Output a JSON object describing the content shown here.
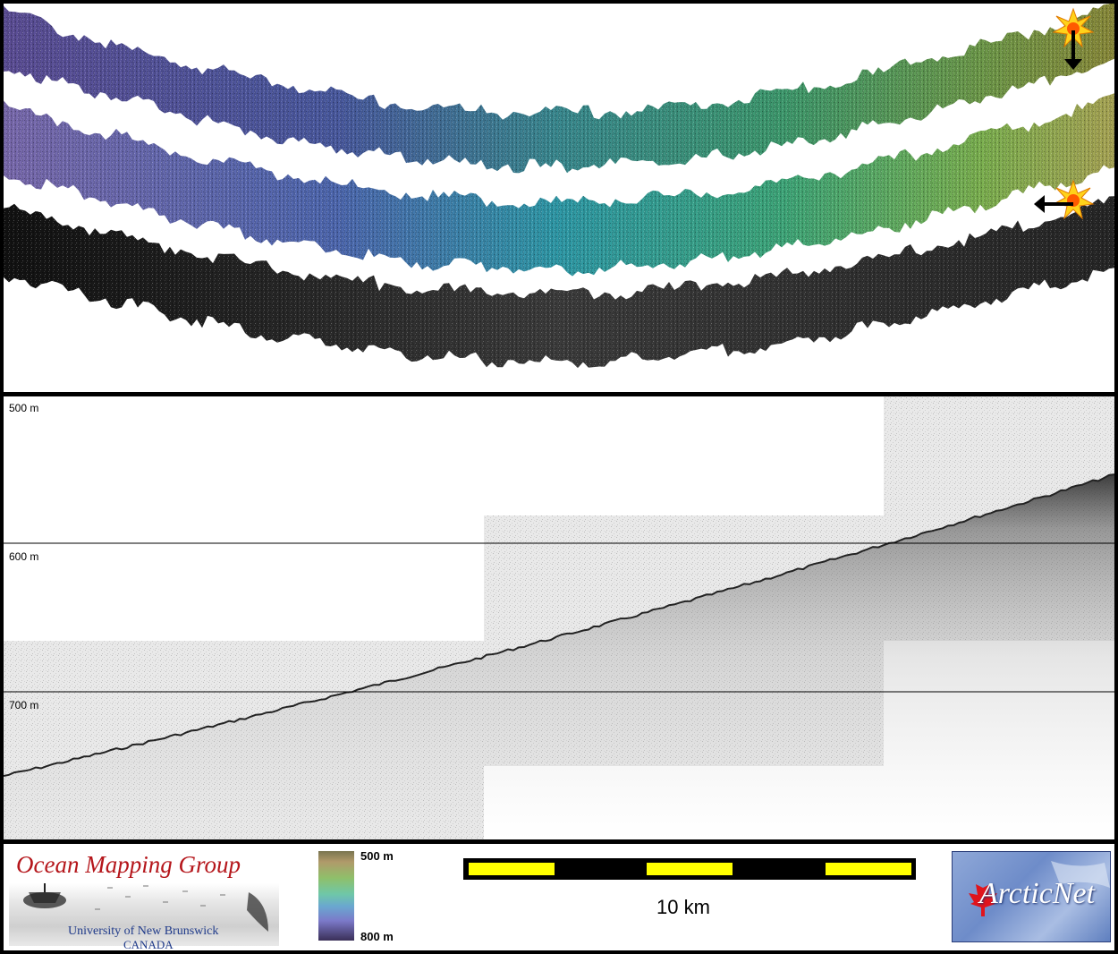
{
  "map": {
    "strips": [
      {
        "name": "bathymetry-sun-illumination-north",
        "color_west": "#5c4e96",
        "color_center": "#3d8f8a",
        "color_east": "#8a8a3a"
      },
      {
        "name": "bathymetry-sun-illumination-west",
        "color_west": "#7a6aae",
        "color_center": "#2f8aa0",
        "color_east": "#9aa54a"
      },
      {
        "name": "backscatter",
        "color_west": "#1a1a1a",
        "color_center": "#3a3a3a",
        "color_east": "#2a2a2a"
      }
    ],
    "sun_icons": [
      {
        "name": "sun-icon-north",
        "arrow_direction": "down"
      },
      {
        "name": "sun-icon-west",
        "arrow_direction": "left"
      }
    ]
  },
  "profile": {
    "depth_labels": [
      "500 m",
      "600 m",
      "700 m"
    ],
    "depth_range_m": [
      488,
      788
    ]
  },
  "legend": {
    "organization_title": "Ocean Mapping Group",
    "university": "University of New Brunswick",
    "country": "CANADA",
    "colorbar": {
      "top_label": "500 m",
      "bottom_label": "800 m"
    },
    "scale_label": "10 km",
    "partner_logo_text": "ArcticNet"
  }
}
